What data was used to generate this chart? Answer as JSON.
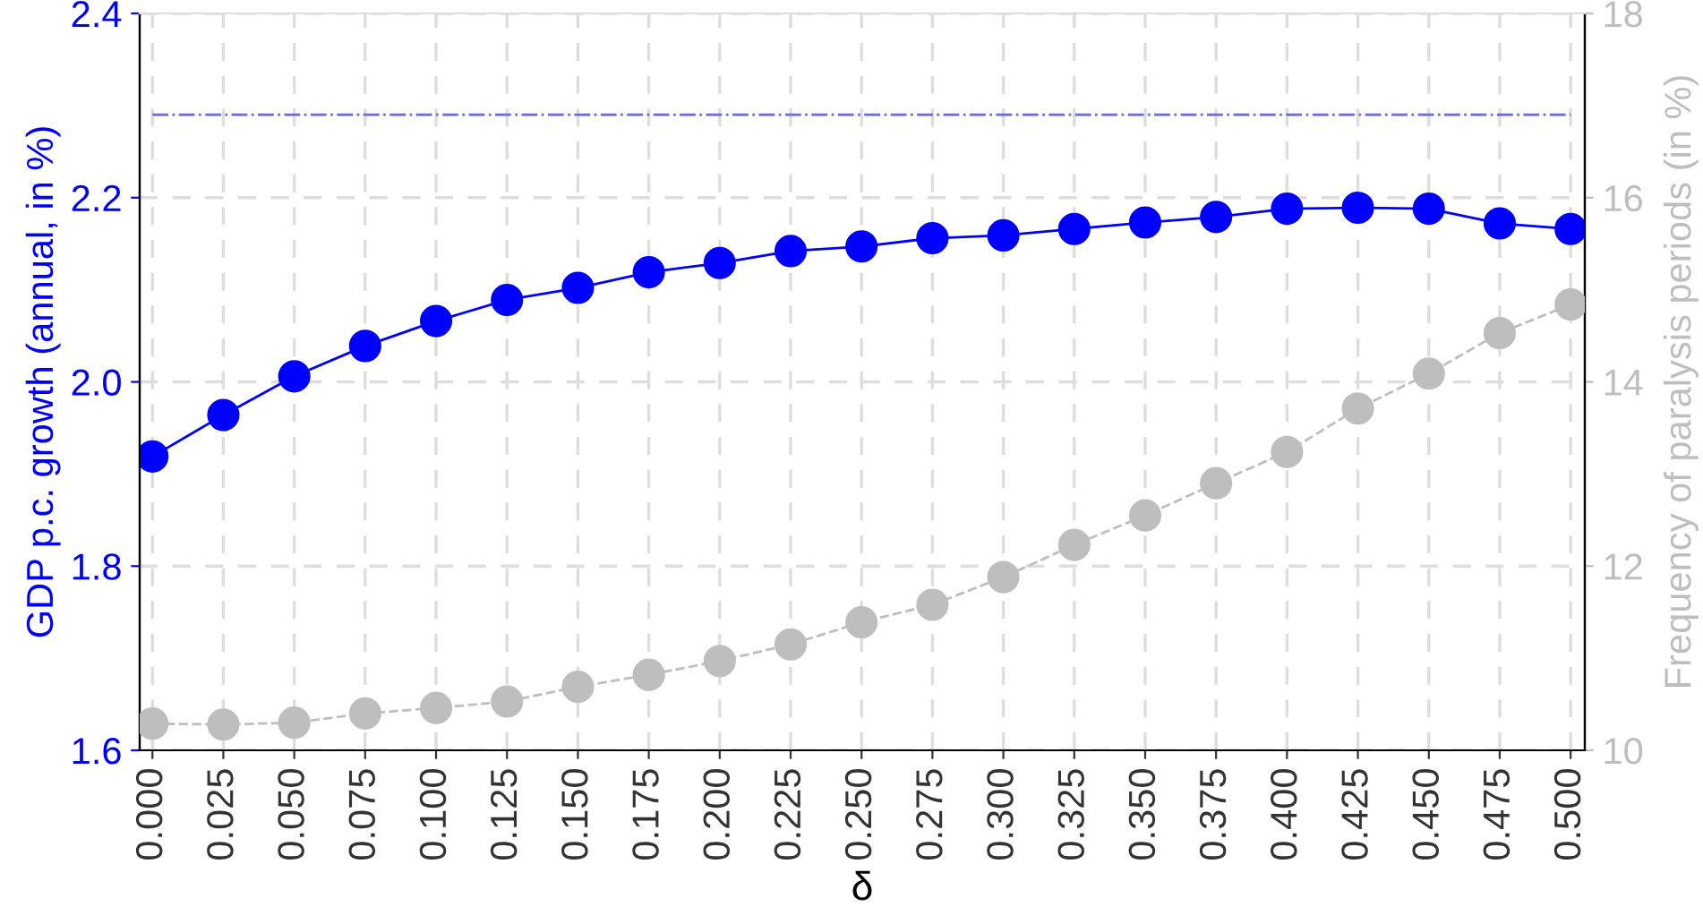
{
  "chart_data": {
    "type": "line",
    "xlabel": "δ",
    "ylabel": "GDP p.c. growth (annual, in %)",
    "y2label": "Frequency of paralysis periods (in %)",
    "x": [
      0,
      0.025,
      0.05,
      0.075,
      0.1,
      0.125,
      0.15,
      0.175,
      0.2,
      0.225,
      0.25,
      0.275,
      0.3,
      0.325,
      0.35,
      0.375,
      0.4,
      0.425,
      0.45,
      0.475,
      0.5
    ],
    "series": [
      {
        "color": "#0000ff",
        "line_style": "solid",
        "values": [
          1.919,
          1.964,
          2.006,
          2.039,
          2.066,
          2.089,
          2.102,
          2.119,
          2.129,
          2.142,
          2.147,
          2.156,
          2.159,
          2.166,
          2.173,
          2.179,
          2.188,
          2.189,
          2.188,
          2.172,
          2.166
        ]
      },
      {
        "color": "#bebebe",
        "line_style": "dashed",
        "axis": "y2",
        "values": [
          10.29,
          10.28,
          10.3,
          10.4,
          10.46,
          10.53,
          10.69,
          10.82,
          10.97,
          11.15,
          11.39,
          11.58,
          11.88,
          12.23,
          12.55,
          12.9,
          13.24,
          13.71,
          14.09,
          14.53,
          14.84
        ]
      }
    ],
    "xlim": [
      -0.0045,
      0.505
    ],
    "xticks": [
      {
        "value": 0,
        "label": "0.000"
      },
      {
        "value": 0.025,
        "label": "0.025"
      },
      {
        "value": 0.05,
        "label": "0.050"
      },
      {
        "value": 0.075,
        "label": "0.075"
      },
      {
        "value": 0.1,
        "label": "0.100"
      },
      {
        "value": 0.125,
        "label": "0.125"
      },
      {
        "value": 0.15,
        "label": "0.150"
      },
      {
        "value": 0.175,
        "label": "0.175"
      },
      {
        "value": 0.2,
        "label": "0.200"
      },
      {
        "value": 0.225,
        "label": "0.225"
      },
      {
        "value": 0.25,
        "label": "0.250"
      },
      {
        "value": 0.275,
        "label": "0.275"
      },
      {
        "value": 0.3,
        "label": "0.300"
      },
      {
        "value": 0.325,
        "label": "0.325"
      },
      {
        "value": 0.35,
        "label": "0.350"
      },
      {
        "value": 0.375,
        "label": "0.375"
      },
      {
        "value": 0.4,
        "label": "0.400"
      },
      {
        "value": 0.425,
        "label": "0.425"
      },
      {
        "value": 0.45,
        "label": "0.450"
      },
      {
        "value": 0.475,
        "label": "0.475"
      },
      {
        "value": 0.5,
        "label": "0.500"
      }
    ],
    "ylim": [
      1.6,
      2.4
    ],
    "yticks": [
      {
        "value": 1.6,
        "label": "1.6"
      },
      {
        "value": 1.8,
        "label": "1.8"
      },
      {
        "value": 2.0,
        "label": "2.0"
      },
      {
        "value": 2.2,
        "label": "2.2"
      },
      {
        "value": 2.4,
        "label": "2.4"
      }
    ],
    "y2lim": [
      10,
      18
    ],
    "y2ticks": [
      10,
      12,
      14,
      16,
      18
    ],
    "ref_lines": [
      {
        "axis": "y",
        "value": 2.29,
        "color": "#6666ff",
        "line_style": "dashdot"
      }
    ],
    "grid": true,
    "marker": "circle",
    "legend": false
  }
}
